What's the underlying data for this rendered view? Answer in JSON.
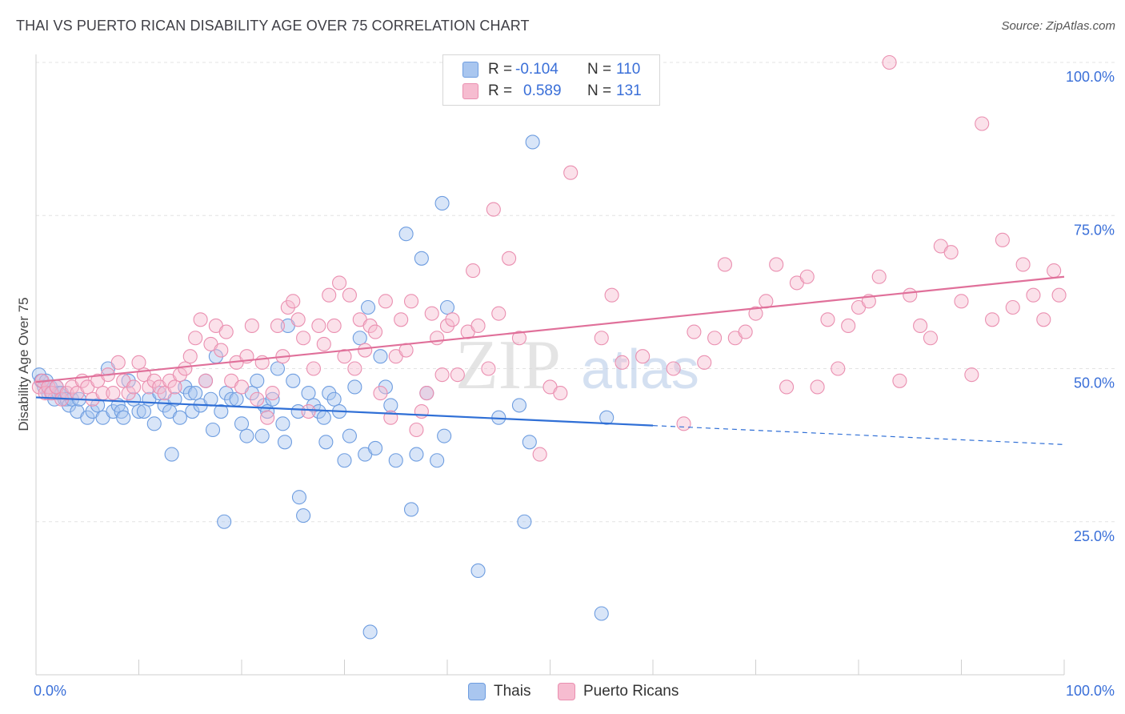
{
  "title": "THAI VS PUERTO RICAN DISABILITY AGE OVER 75 CORRELATION CHART",
  "source": "Source: ZipAtlas.com",
  "watermark": {
    "zip": "ZIP",
    "atlas": "atlas"
  },
  "legend": {
    "rows": [
      {
        "r_label": "R =",
        "r_value": "-0.104",
        "n_label": "N =",
        "n_value": "110"
      },
      {
        "r_label": "R =",
        "r_value": "0.589",
        "n_label": "N =",
        "n_value": "131"
      }
    ]
  },
  "bottom_legend": [
    "Thais",
    "Puerto Ricans"
  ],
  "colors": {
    "thais_fill": "#a9c6ef",
    "thais_stroke": "#6e9de0",
    "thais_line": "#2f6fd6",
    "pr_fill": "#f6bcd0",
    "pr_stroke": "#ea8fb0",
    "pr_line": "#e0709a",
    "tick_label": "#3a6fd8",
    "grid": "#e3e3e3"
  },
  "chart_data": {
    "type": "scatter",
    "title": "THAI VS PUERTO RICAN DISABILITY AGE OVER 75 CORRELATION CHART",
    "xlabel": "",
    "ylabel": "Disability Age Over 75",
    "xlim": [
      0,
      100
    ],
    "ylim": [
      0,
      100
    ],
    "x_tick_labels": [
      "0.0%",
      "100.0%"
    ],
    "y_ticks": [
      25,
      50,
      75,
      100
    ],
    "y_tick_labels": [
      "25.0%",
      "50.0%",
      "75.0%",
      "100.0%"
    ],
    "grid": true,
    "legend_placement": "top-center",
    "series": [
      {
        "name": "Thais",
        "r": -0.104,
        "n": 110,
        "trend": {
          "x0": 0,
          "y0": 45.3,
          "x1": 60,
          "y1": 40.7,
          "dash_to_x": 100,
          "dash_to_y": 37.6
        },
        "points": [
          [
            0.3,
            49
          ],
          [
            0.5,
            48
          ],
          [
            0.8,
            47
          ],
          [
            1,
            48
          ],
          [
            1.2,
            46
          ],
          [
            1.4,
            47
          ],
          [
            1.6,
            46
          ],
          [
            1.8,
            45
          ],
          [
            2,
            47
          ],
          [
            2.2,
            46
          ],
          [
            2.5,
            46
          ],
          [
            2.8,
            45
          ],
          [
            3,
            45
          ],
          [
            3.2,
            44
          ],
          [
            3.5,
            45
          ],
          [
            4,
            43
          ],
          [
            4.2,
            45
          ],
          [
            5,
            42
          ],
          [
            5.5,
            43
          ],
          [
            6,
            44
          ],
          [
            6.5,
            42
          ],
          [
            7,
            50
          ],
          [
            7.5,
            43
          ],
          [
            8,
            44
          ],
          [
            8.3,
            43
          ],
          [
            8.5,
            42
          ],
          [
            9,
            48
          ],
          [
            9.5,
            45
          ],
          [
            10,
            43
          ],
          [
            10.5,
            43
          ],
          [
            11,
            45
          ],
          [
            11.5,
            41
          ],
          [
            12,
            46
          ],
          [
            12.5,
            44
          ],
          [
            13,
            43
          ],
          [
            13.2,
            36
          ],
          [
            13.5,
            45
          ],
          [
            14,
            42
          ],
          [
            14.5,
            47
          ],
          [
            15,
            46
          ],
          [
            15.2,
            43
          ],
          [
            15.5,
            46
          ],
          [
            16,
            44
          ],
          [
            16.5,
            48
          ],
          [
            17,
            45
          ],
          [
            17.2,
            40
          ],
          [
            17.5,
            52
          ],
          [
            18,
            43
          ],
          [
            18.3,
            25
          ],
          [
            18.5,
            46
          ],
          [
            19,
            45
          ],
          [
            19.5,
            45
          ],
          [
            20,
            41
          ],
          [
            20.5,
            39
          ],
          [
            21,
            46
          ],
          [
            21.5,
            48
          ],
          [
            22,
            39
          ],
          [
            22.2,
            44
          ],
          [
            22.5,
            43
          ],
          [
            23,
            45
          ],
          [
            23.5,
            50
          ],
          [
            24,
            41
          ],
          [
            24.2,
            38
          ],
          [
            24.5,
            57
          ],
          [
            25,
            48
          ],
          [
            25.5,
            43
          ],
          [
            25.6,
            29
          ],
          [
            26,
            26
          ],
          [
            26.5,
            46
          ],
          [
            27,
            44
          ],
          [
            27.5,
            43
          ],
          [
            28,
            42
          ],
          [
            28.2,
            38
          ],
          [
            28.5,
            46
          ],
          [
            29,
            45
          ],
          [
            29.5,
            43
          ],
          [
            30,
            35
          ],
          [
            30.5,
            39
          ],
          [
            31,
            47
          ],
          [
            31.5,
            55
          ],
          [
            32,
            36
          ],
          [
            32.3,
            60
          ],
          [
            32.5,
            7
          ],
          [
            33,
            37
          ],
          [
            33.5,
            52
          ],
          [
            34,
            47
          ],
          [
            34.5,
            44
          ],
          [
            35,
            35
          ],
          [
            36,
            72
          ],
          [
            36.5,
            27
          ],
          [
            37,
            36
          ],
          [
            37.5,
            68
          ],
          [
            38,
            46
          ],
          [
            39,
            35
          ],
          [
            39.5,
            77
          ],
          [
            39.7,
            39
          ],
          [
            40,
            60
          ],
          [
            43,
            17
          ],
          [
            45,
            42
          ],
          [
            47,
            44
          ],
          [
            47.5,
            25
          ],
          [
            48,
            38
          ],
          [
            48.3,
            87
          ],
          [
            55,
            10
          ],
          [
            55.5,
            42
          ]
        ]
      },
      {
        "name": "Puerto Ricans",
        "r": 0.589,
        "n": 131,
        "trend": {
          "x0": 0,
          "y0": 47.8,
          "x1": 100,
          "y1": 65
        },
        "points": [
          [
            0.3,
            47
          ],
          [
            0.6,
            48
          ],
          [
            0.9,
            46
          ],
          [
            1.2,
            47
          ],
          [
            1.5,
            46
          ],
          [
            2,
            47
          ],
          [
            2.5,
            45
          ],
          [
            3,
            46
          ],
          [
            3.5,
            47
          ],
          [
            4,
            46
          ],
          [
            4.5,
            48
          ],
          [
            5,
            47
          ],
          [
            5.5,
            45
          ],
          [
            6,
            48
          ],
          [
            6.5,
            46
          ],
          [
            7,
            49
          ],
          [
            7.5,
            46
          ],
          [
            8,
            51
          ],
          [
            8.5,
            48
          ],
          [
            9,
            46
          ],
          [
            9.5,
            47
          ],
          [
            10,
            51
          ],
          [
            10.5,
            49
          ],
          [
            11,
            47
          ],
          [
            11.5,
            48
          ],
          [
            12,
            47
          ],
          [
            12.5,
            46
          ],
          [
            13,
            48
          ],
          [
            13.5,
            47
          ],
          [
            14,
            49
          ],
          [
            14.5,
            50
          ],
          [
            15,
            52
          ],
          [
            15.5,
            55
          ],
          [
            16,
            58
          ],
          [
            16.5,
            48
          ],
          [
            17,
            54
          ],
          [
            17.5,
            57
          ],
          [
            18,
            53
          ],
          [
            18.5,
            56
          ],
          [
            19,
            48
          ],
          [
            19.5,
            51
          ],
          [
            20,
            47
          ],
          [
            20.5,
            52
          ],
          [
            21,
            57
          ],
          [
            21.5,
            45
          ],
          [
            22,
            51
          ],
          [
            22.5,
            42
          ],
          [
            23,
            46
          ],
          [
            23.5,
            57
          ],
          [
            24,
            52
          ],
          [
            24.5,
            60
          ],
          [
            25,
            61
          ],
          [
            25.5,
            58
          ],
          [
            26,
            55
          ],
          [
            26.5,
            43
          ],
          [
            27,
            50
          ],
          [
            27.5,
            57
          ],
          [
            28,
            54
          ],
          [
            28.5,
            62
          ],
          [
            29,
            57
          ],
          [
            29.5,
            64
          ],
          [
            30,
            52
          ],
          [
            30.5,
            62
          ],
          [
            31,
            50
          ],
          [
            31.5,
            58
          ],
          [
            32,
            53
          ],
          [
            32.5,
            57
          ],
          [
            33,
            56
          ],
          [
            33.5,
            46
          ],
          [
            34,
            61
          ],
          [
            34.5,
            42
          ],
          [
            35,
            52
          ],
          [
            35.5,
            58
          ],
          [
            36,
            53
          ],
          [
            36.5,
            61
          ],
          [
            37,
            40
          ],
          [
            37.5,
            43
          ],
          [
            38,
            46
          ],
          [
            38.5,
            59
          ],
          [
            39,
            55
          ],
          [
            39.5,
            49
          ],
          [
            40,
            57
          ],
          [
            40.5,
            58
          ],
          [
            41,
            49
          ],
          [
            42,
            56
          ],
          [
            42.5,
            66
          ],
          [
            43,
            57
          ],
          [
            44,
            50
          ],
          [
            44.5,
            76
          ],
          [
            45,
            59
          ],
          [
            46,
            68
          ],
          [
            47,
            55
          ],
          [
            49,
            36
          ],
          [
            50,
            47
          ],
          [
            51,
            46
          ],
          [
            52,
            82
          ],
          [
            55,
            55
          ],
          [
            56,
            62
          ],
          [
            57,
            51
          ],
          [
            59,
            52
          ],
          [
            62,
            50
          ],
          [
            63,
            41
          ],
          [
            64,
            56
          ],
          [
            65,
            51
          ],
          [
            66,
            55
          ],
          [
            67,
            67
          ],
          [
            68,
            55
          ],
          [
            69,
            56
          ],
          [
            70,
            59
          ],
          [
            71,
            61
          ],
          [
            72,
            67
          ],
          [
            73,
            47
          ],
          [
            74,
            64
          ],
          [
            75,
            65
          ],
          [
            76,
            47
          ],
          [
            77,
            58
          ],
          [
            78,
            50
          ],
          [
            79,
            57
          ],
          [
            80,
            60
          ],
          [
            81,
            61
          ],
          [
            82,
            65
          ],
          [
            83,
            100
          ],
          [
            84,
            48
          ],
          [
            85,
            62
          ],
          [
            86,
            57
          ],
          [
            87,
            55
          ],
          [
            88,
            70
          ],
          [
            89,
            69
          ],
          [
            90,
            61
          ],
          [
            91,
            49
          ],
          [
            92,
            90
          ],
          [
            93,
            58
          ],
          [
            94,
            71
          ],
          [
            95,
            60
          ],
          [
            96,
            67
          ],
          [
            97,
            62
          ],
          [
            98,
            58
          ],
          [
            99,
            66
          ],
          [
            99.5,
            62
          ]
        ]
      }
    ]
  }
}
